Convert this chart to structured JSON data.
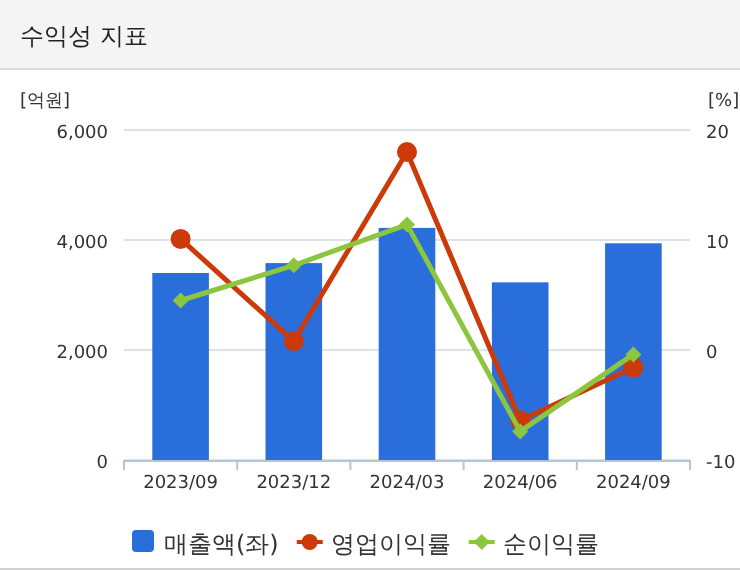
{
  "chart_data": {
    "type": "bar",
    "title": "수익성 지표",
    "ylabel": "[억원]",
    "y2label": "[%]",
    "categories": [
      "2023/09",
      "2023/12",
      "2024/03",
      "2024/06",
      "2024/09"
    ],
    "series": [
      {
        "name": "매출액(좌)",
        "color": "#2a6edb",
        "values": [
          3400,
          3580,
          4220,
          3230,
          3940
        ]
      },
      {
        "name": "영업이익률",
        "type": "line",
        "axis": "y2",
        "marker": "circle",
        "color": "#cc3a0a",
        "values": [
          10.1,
          0.8,
          18.0,
          -6.4,
          -1.6
        ]
      },
      {
        "name": "순이익률",
        "type": "line",
        "axis": "y2",
        "marker": "diamond",
        "color": "#8cc63f",
        "values": [
          4.5,
          7.7,
          11.4,
          -7.4,
          -0.4
        ]
      }
    ],
    "ylim": [
      0,
      6000
    ],
    "yticks": [
      0,
      {
        "value": 2000,
        "label": "2,000"
      },
      {
        "value": 4000,
        "label": "4,000"
      },
      {
        "value": 6000,
        "label": "6,000"
      }
    ],
    "y2lim": [
      -10,
      20
    ],
    "y2ticks": [
      -10,
      0,
      10,
      20
    ],
    "grid": "y",
    "legend": "bottom"
  }
}
